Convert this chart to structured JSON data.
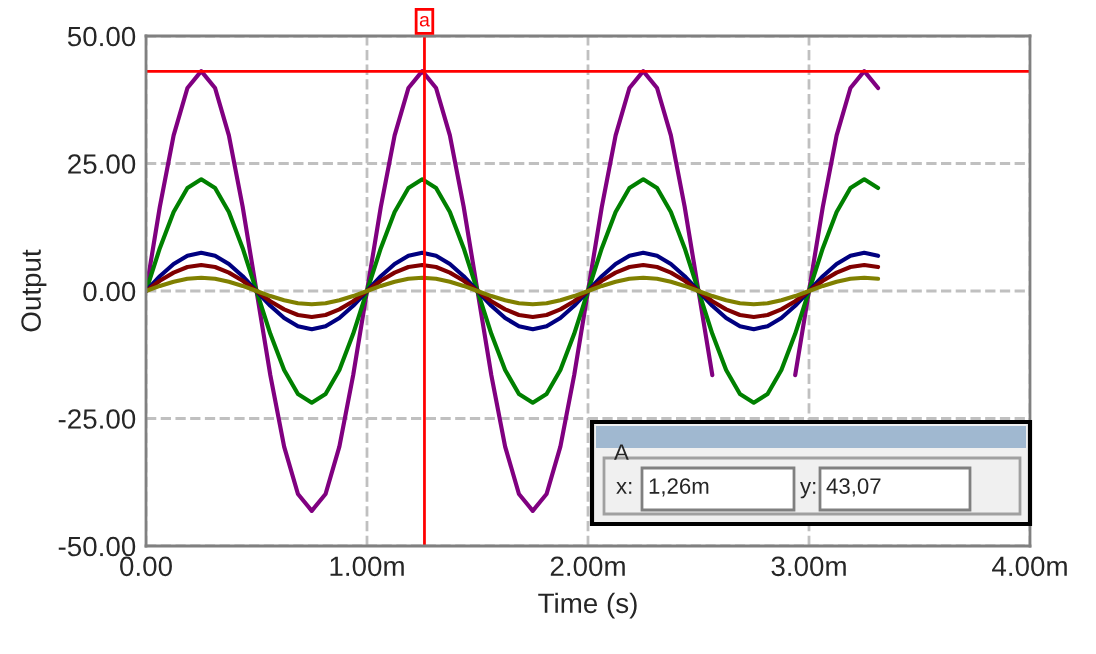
{
  "chart_data": {
    "type": "line",
    "xlabel": "Time (s)",
    "ylabel": "Output",
    "x": [
      0,
      0.0625,
      0.125,
      0.1875,
      0.25,
      0.3125,
      0.375,
      0.4375,
      0.5,
      0.5625,
      0.625,
      0.6875,
      0.75,
      0.8125,
      0.875,
      0.9375,
      1,
      1.0625,
      1.125,
      1.1875,
      1.25,
      1.3125,
      1.375,
      1.4375,
      1.5,
      1.5625,
      1.625,
      1.6875,
      1.75,
      1.8125,
      1.875,
      1.9375,
      2,
      2.0625,
      2.125,
      2.1875,
      2.25,
      2.3125,
      2.375,
      2.4375,
      2.5,
      2.5625,
      2.625,
      2.6875,
      2.75,
      2.8125,
      2.875,
      2.9375,
      3,
      3.0625,
      3.125,
      3.1875,
      3.25,
      3.3125
    ],
    "series": [
      {
        "color": "#800080",
        "values": [
          0,
          16.5,
          30.5,
          39.8,
          43.1,
          39.8,
          30.5,
          16.5,
          0,
          -16.5,
          -30.5,
          -39.8,
          -43.1,
          -39.8,
          -30.5,
          -16.5,
          0,
          16.5,
          30.5,
          39.8,
          43.1,
          39.8,
          30.5,
          16.5,
          0,
          -16.5,
          -30.5,
          -39.8,
          -43.1,
          -39.8,
          -30.5,
          -16.5,
          0,
          16.5,
          30.5,
          39.8,
          43.1,
          39.8,
          30.5,
          16.5,
          0,
          -16.5,
          null,
          null,
          null,
          null,
          null,
          -16.5,
          0,
          16.5,
          30.5,
          39.8,
          43.1,
          39.8
        ]
      },
      {
        "color": "#008000",
        "values": [
          0,
          8.4,
          15.5,
          20.2,
          21.9,
          20.2,
          15.5,
          8.4,
          0,
          -8.4,
          -15.5,
          -20.2,
          -21.9,
          -20.2,
          -15.5,
          -8.4,
          0,
          8.4,
          15.5,
          20.2,
          21.9,
          20.2,
          15.5,
          8.4,
          0,
          -8.4,
          -15.5,
          -20.2,
          -21.9,
          -20.2,
          -15.5,
          -8.4,
          0,
          8.4,
          15.5,
          20.2,
          21.9,
          20.2,
          15.5,
          8.4,
          0,
          -8.4,
          -15.5,
          -20.2,
          -21.9,
          -20.2,
          -15.5,
          -8.4,
          0,
          8.4,
          15.5,
          20.2,
          21.9,
          20.2
        ]
      },
      {
        "color": "#000080",
        "values": [
          0,
          2.9,
          5.3,
          6.9,
          7.5,
          6.9,
          5.3,
          2.9,
          0,
          -2.9,
          -5.3,
          -6.9,
          -7.5,
          -6.9,
          -5.3,
          -2.9,
          0,
          2.9,
          5.3,
          6.9,
          7.5,
          6.9,
          5.3,
          2.9,
          0,
          -2.9,
          -5.3,
          -6.9,
          -7.5,
          -6.9,
          -5.3,
          -2.9,
          0,
          2.9,
          5.3,
          6.9,
          7.5,
          6.9,
          5.3,
          2.9,
          0,
          -2.9,
          -5.3,
          -6.9,
          -7.5,
          -6.9,
          -5.3,
          -2.9,
          0,
          2.9,
          5.3,
          6.9,
          7.5,
          6.9
        ]
      },
      {
        "color": "#800000",
        "values": [
          0,
          2.0,
          3.6,
          4.7,
          5.1,
          4.7,
          3.6,
          2.0,
          0,
          -2.0,
          -3.6,
          -4.7,
          -5.1,
          -4.7,
          -3.6,
          -2.0,
          0,
          2.0,
          3.6,
          4.7,
          5.1,
          4.7,
          3.6,
          2.0,
          0,
          -2.0,
          -3.6,
          -4.7,
          -5.1,
          -4.7,
          -3.6,
          -2.0,
          0,
          2.0,
          3.6,
          4.7,
          5.1,
          4.7,
          3.6,
          2.0,
          0,
          -2.0,
          -3.6,
          -4.7,
          -5.1,
          -4.7,
          -3.6,
          -2.0,
          0,
          2.0,
          3.6,
          4.7,
          5.1,
          4.7
        ]
      },
      {
        "color": "#808000",
        "values": [
          0,
          1.0,
          1.8,
          2.4,
          2.6,
          2.4,
          1.8,
          1.0,
          0,
          -1.0,
          -1.8,
          -2.4,
          -2.6,
          -2.4,
          -1.8,
          -1.0,
          0,
          1.0,
          1.8,
          2.4,
          2.6,
          2.4,
          1.8,
          1.0,
          0,
          -1.0,
          -1.8,
          -2.4,
          -2.6,
          -2.4,
          -1.8,
          -1.0,
          0,
          1.0,
          1.8,
          2.4,
          2.6,
          2.4,
          1.8,
          1.0,
          0,
          -1.0,
          -1.8,
          -2.4,
          -2.6,
          -2.4,
          -1.8,
          -1.0,
          0,
          1.0,
          1.8,
          2.4,
          2.6,
          2.4
        ]
      }
    ],
    "xlim": [
      0,
      4
    ],
    "ylim": [
      -50,
      50
    ],
    "xticks": [
      {
        "value": 0,
        "label": "0.00"
      },
      {
        "value": 1,
        "label": "1.00m"
      },
      {
        "value": 2,
        "label": "2.00m"
      },
      {
        "value": 3,
        "label": "3.00m"
      },
      {
        "value": 4,
        "label": "4.00m"
      }
    ],
    "yticks": [
      {
        "value": -50,
        "label": "-50.00"
      },
      {
        "value": -25,
        "label": "-25.00"
      },
      {
        "value": 0,
        "label": "0.00"
      },
      {
        "value": 25,
        "label": "25.00"
      },
      {
        "value": 50,
        "label": "50.00"
      }
    ],
    "ref_lines": [
      {
        "axis": "x",
        "value": 1.26,
        "label": "a",
        "color": "#ff0000"
      },
      {
        "axis": "y",
        "value": 43.07,
        "color": "#ff0000"
      }
    ],
    "annotations": [
      "A",
      "x:",
      "1,26m",
      "y:",
      "43,07"
    ],
    "grid": true,
    "line_style": "solid",
    "marker": "none"
  }
}
